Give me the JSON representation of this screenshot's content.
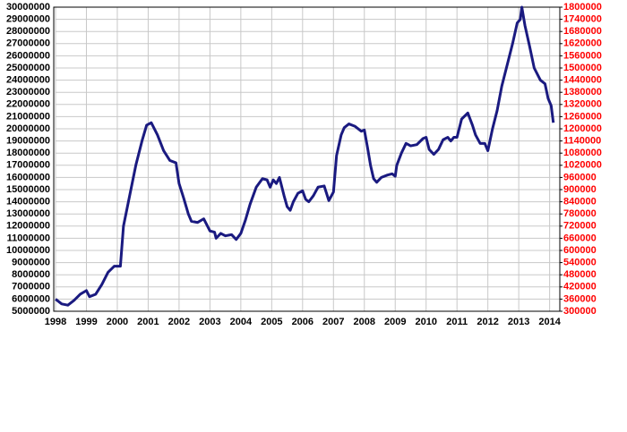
{
  "chart_data": {
    "type": "line",
    "x": [
      1998.0,
      1998.2,
      1998.4,
      1998.6,
      1998.8,
      1999.0,
      1999.1,
      1999.3,
      1999.5,
      1999.7,
      1999.9,
      2000.1,
      2000.2,
      2000.4,
      2000.6,
      2000.8,
      2000.95,
      2001.1,
      2001.3,
      2001.5,
      2001.7,
      2001.9,
      2002.0,
      2002.15,
      2002.3,
      2002.4,
      2002.6,
      2002.8,
      2003.0,
      2003.15,
      2003.2,
      2003.35,
      2003.5,
      2003.7,
      2003.85,
      2004.0,
      2004.15,
      2004.3,
      2004.5,
      2004.7,
      2004.85,
      2004.95,
      2005.05,
      2005.15,
      2005.25,
      2005.4,
      2005.5,
      2005.6,
      2005.7,
      2005.85,
      2006.0,
      2006.1,
      2006.2,
      2006.35,
      2006.5,
      2006.7,
      2006.85,
      2007.0,
      2007.1,
      2007.25,
      2007.35,
      2007.5,
      2007.7,
      2007.9,
      2008.0,
      2008.1,
      2008.2,
      2008.3,
      2008.4,
      2008.55,
      2008.75,
      2008.9,
      2009.0,
      2009.05,
      2009.2,
      2009.35,
      2009.5,
      2009.7,
      2009.9,
      2010.0,
      2010.1,
      2010.25,
      2010.4,
      2010.55,
      2010.7,
      2010.8,
      2010.9,
      2011.0,
      2011.15,
      2011.35,
      2011.5,
      2011.6,
      2011.75,
      2011.9,
      2012.0,
      2012.15,
      2012.3,
      2012.45,
      2012.65,
      2012.8,
      2012.95,
      2013.05,
      2013.1,
      2013.2,
      2013.35,
      2013.5,
      2013.7,
      2013.85,
      2013.95,
      2014.05,
      2014.12
    ],
    "series": [
      {
        "color": "#1a1a80",
        "values": [
          6000000,
          5600000,
          5500000,
          5900000,
          6400000,
          6700000,
          6200000,
          6400000,
          7200000,
          8200000,
          8700000,
          8700000,
          12000000,
          14500000,
          17000000,
          19000000,
          20300000,
          20500000,
          19500000,
          18200000,
          17400000,
          17200000,
          15500000,
          14300000,
          13000000,
          12400000,
          12300000,
          12600000,
          11600000,
          11500000,
          11000000,
          11400000,
          11200000,
          11300000,
          10900000,
          11400000,
          12500000,
          13800000,
          15200000,
          15900000,
          15800000,
          15200000,
          15800000,
          15500000,
          16000000,
          14500000,
          13600000,
          13300000,
          14000000,
          14700000,
          14900000,
          14200000,
          14000000,
          14500000,
          15200000,
          15300000,
          14100000,
          14800000,
          17800000,
          19500000,
          20100000,
          20400000,
          20200000,
          19800000,
          19900000,
          18500000,
          17000000,
          15900000,
          15600000,
          16000000,
          16200000,
          16300000,
          16100000,
          17000000,
          18000000,
          18800000,
          18600000,
          18700000,
          19200000,
          19300000,
          18300000,
          17900000,
          18300000,
          19100000,
          19300000,
          19000000,
          19300000,
          19300000,
          20800000,
          21300000,
          20300000,
          19500000,
          18800000,
          18800000,
          18200000,
          20000000,
          21500000,
          23500000,
          25500000,
          27000000,
          28700000,
          29000000,
          30000000,
          28500000,
          26800000,
          25000000,
          24000000,
          23700000,
          22500000,
          21900000,
          20500000
        ]
      }
    ],
    "xlim": [
      1998,
      2014.33
    ],
    "xticks": [
      1998,
      1999,
      2000,
      2001,
      2002,
      2003,
      2004,
      2005,
      2006,
      2007,
      2008,
      2009,
      2010,
      2011,
      2012,
      2013,
      2014
    ],
    "ylim": [
      5000000,
      30000000
    ],
    "yticks": [
      5000000,
      6000000,
      7000000,
      8000000,
      9000000,
      10000000,
      11000000,
      12000000,
      13000000,
      14000000,
      15000000,
      16000000,
      17000000,
      18000000,
      19000000,
      20000000,
      21000000,
      22000000,
      23000000,
      24000000,
      25000000,
      26000000,
      27000000,
      28000000,
      29000000,
      30000000
    ],
    "y2lim": [
      300000,
      1800000
    ],
    "y2ticks": [
      300000,
      360000,
      420000,
      480000,
      540000,
      600000,
      660000,
      720000,
      780000,
      840000,
      900000,
      960000,
      1020000,
      1080000,
      1140000,
      1200000,
      1260000,
      1320000,
      1380000,
      1440000,
      1500000,
      1560000,
      1620000,
      1680000,
      1740000,
      1800000
    ],
    "y2color": "#ff0000",
    "grid": true
  }
}
